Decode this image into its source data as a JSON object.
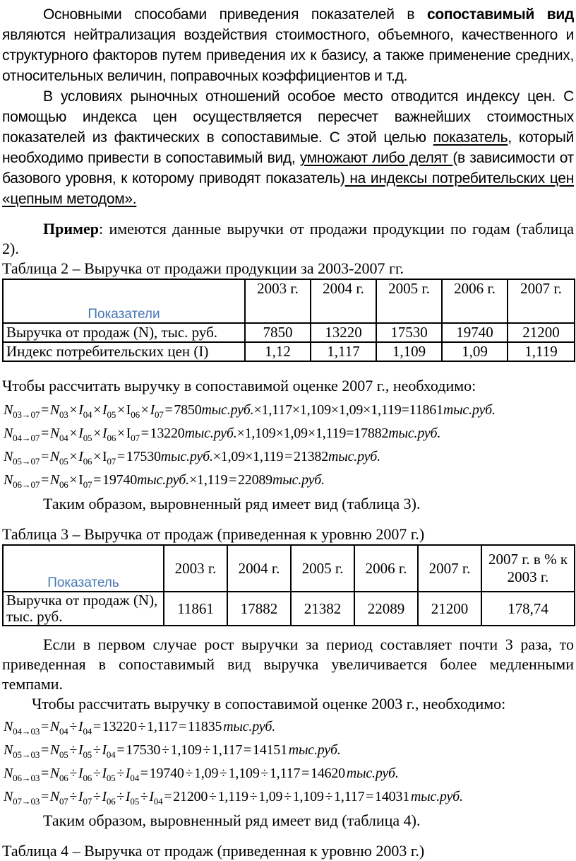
{
  "page": {
    "colors": {
      "accent_blue": "#4576b5",
      "text": "#000000",
      "background": "#ffffff"
    },
    "paragraphs": {
      "intro": {
        "runs": [
          {
            "text": "Основными способами приведения показателей в "
          },
          {
            "text": "сопоставимый вид",
            "bold": true
          },
          {
            "text": " являются нейтрализация воздействия стоимостного, объемного, качественного и структурного факторов путем приведения их к базису, а также применение средних, относительных величин, поправочных коэффициентов и т.д."
          }
        ]
      },
      "price_index": {
        "runs": [
          {
            "text": "В условиях рыночных отношений особое место отводится индексу цен. С помощью индекса цен осуществляется пересчет важнейших стоимостных показателей из фактических в сопоставимые. С этой целью "
          },
          {
            "text": "показатель",
            "underline": true
          },
          {
            "text": ", который необходимо привести в сопоставимый вид, "
          },
          {
            "text": "умножают либо делят ",
            "underline": true
          },
          {
            "text": "(в зависимости от базового уровня, к которому приводят показатель)"
          },
          {
            "text": " на индексы потребительских цен «цепным методом».",
            "underline": true
          }
        ]
      },
      "example": {
        "runs": [
          {
            "text": "Пример",
            "bold": true
          },
          {
            "text": ": имеются данные выручки от продажи продукции по годам (таблица 2)."
          }
        ]
      },
      "growth": {
        "runs": [
          {
            "text": "Если в первом случае рост выручки за период составляет почти 3 раза,  то приведенная в сопоставимый вид выручка увеличивается более медленными темпами."
          }
        ]
      }
    },
    "sections": {
      "calc2007_intro": "Чтобы рассчитать выручку в сопоставимой оценке  2007 г., необходимо:",
      "thus_table3": "Таким образом, выровненный ряд имеет вид (таблица 3).",
      "calc2003_intro": "Чтобы рассчитать выручку в сопоставимой оценке 2003 г., необходимо:",
      "thus_table4": "Таким образом, выровненный ряд имеет вид (таблица 4)."
    },
    "formulas_2007": [
      "*N*_{03→07} = *N*_{03} × *I*_{04} × *I*_{05} × I_{06} × *I*_{07} = 7850*тыс.руб.*×1,117×1,109×1,09×1,119=11861*тыс.руб.*",
      "*N*_{04→07} = *N*_{04} × *I*_{05} × *I*_{06} × I_{07} = 13220*тыс.руб.*×1,109×1,09×1,119=17882*тыс.руб.*",
      "*N*_{05→07} = *N*_{05} × *I*_{06} × I_{07} = 17530*тыс.руб.*×1,09×1,119 = 21382*тыс.руб.*",
      "*N*_{06→07} = *N*_{06} × I_{07} = 19740*тыс.руб.*×1,119 = 22089*тыс.руб.*"
    ],
    "formulas_2003": [
      "*N*_{04→03} = *N*_{04} ÷ *I*_{04} = 13220 ÷ 1,117 = 11835 *тыс.руб.*",
      "*N*_{05→03} = *N*_{05} ÷ *I*_{05} ÷ *I*_{04} = 17530 ÷ 1,109 ÷ 1,117 = 14151 *тыс.руб.*",
      "*N*_{06→03} = *N*_{06} ÷ *I*_{06} ÷ *I*_{05} ÷ *I*_{04} = 19740 ÷ 1,09 ÷ 1,109 ÷ 1,117 = 14620 *тыс.руб.*",
      "*N*_{07→03} = *N*_{07} ÷ *I*_{07} ÷ *I*_{06} ÷ *I*_{05} ÷ *I*_{04} = 21200 ÷ 1,119 ÷ 1,09 ÷ 1,109 ÷ 1,117 = 14031 *тыс.руб.*"
    ],
    "table2": {
      "title": "Таблица 2 – Выручка от продажи продукции за 2003-2007 гг.",
      "header_label": "Показатели",
      "col_headers": [
        "2003 г.",
        "2004 г.",
        "2005 г.",
        "2006 г.",
        "2007 г."
      ],
      "rows": [
        {
          "label": "Выручка от продаж (N), тыс. руб.",
          "values": [
            "7850",
            "13220",
            "17530",
            "19740",
            "21200"
          ]
        },
        {
          "label": "Индекс потребительских цен (I)",
          "values": [
            "1,12",
            "1,117",
            "1,109",
            "1,09",
            "1,119"
          ]
        }
      ]
    },
    "table3": {
      "title": "Таблица 3 – Выручка от продаж (приведенная к уровню 2007 г.)",
      "header_label": "Показатель",
      "col_headers": [
        "2003 г.",
        "2004 г.",
        "2005 г.",
        "2006 г.",
        "2007 г.",
        "2007 г. в % к 2003 г."
      ],
      "row": {
        "label": "Выручка от продаж (N), тыс. руб.",
        "values": [
          "11861",
          "17882",
          "21382",
          "22089",
          "21200",
          "178,74"
        ]
      }
    },
    "table4_title": "Таблица 4 – Выручка от продаж (приведенная к уровню 2003 г.)"
  }
}
